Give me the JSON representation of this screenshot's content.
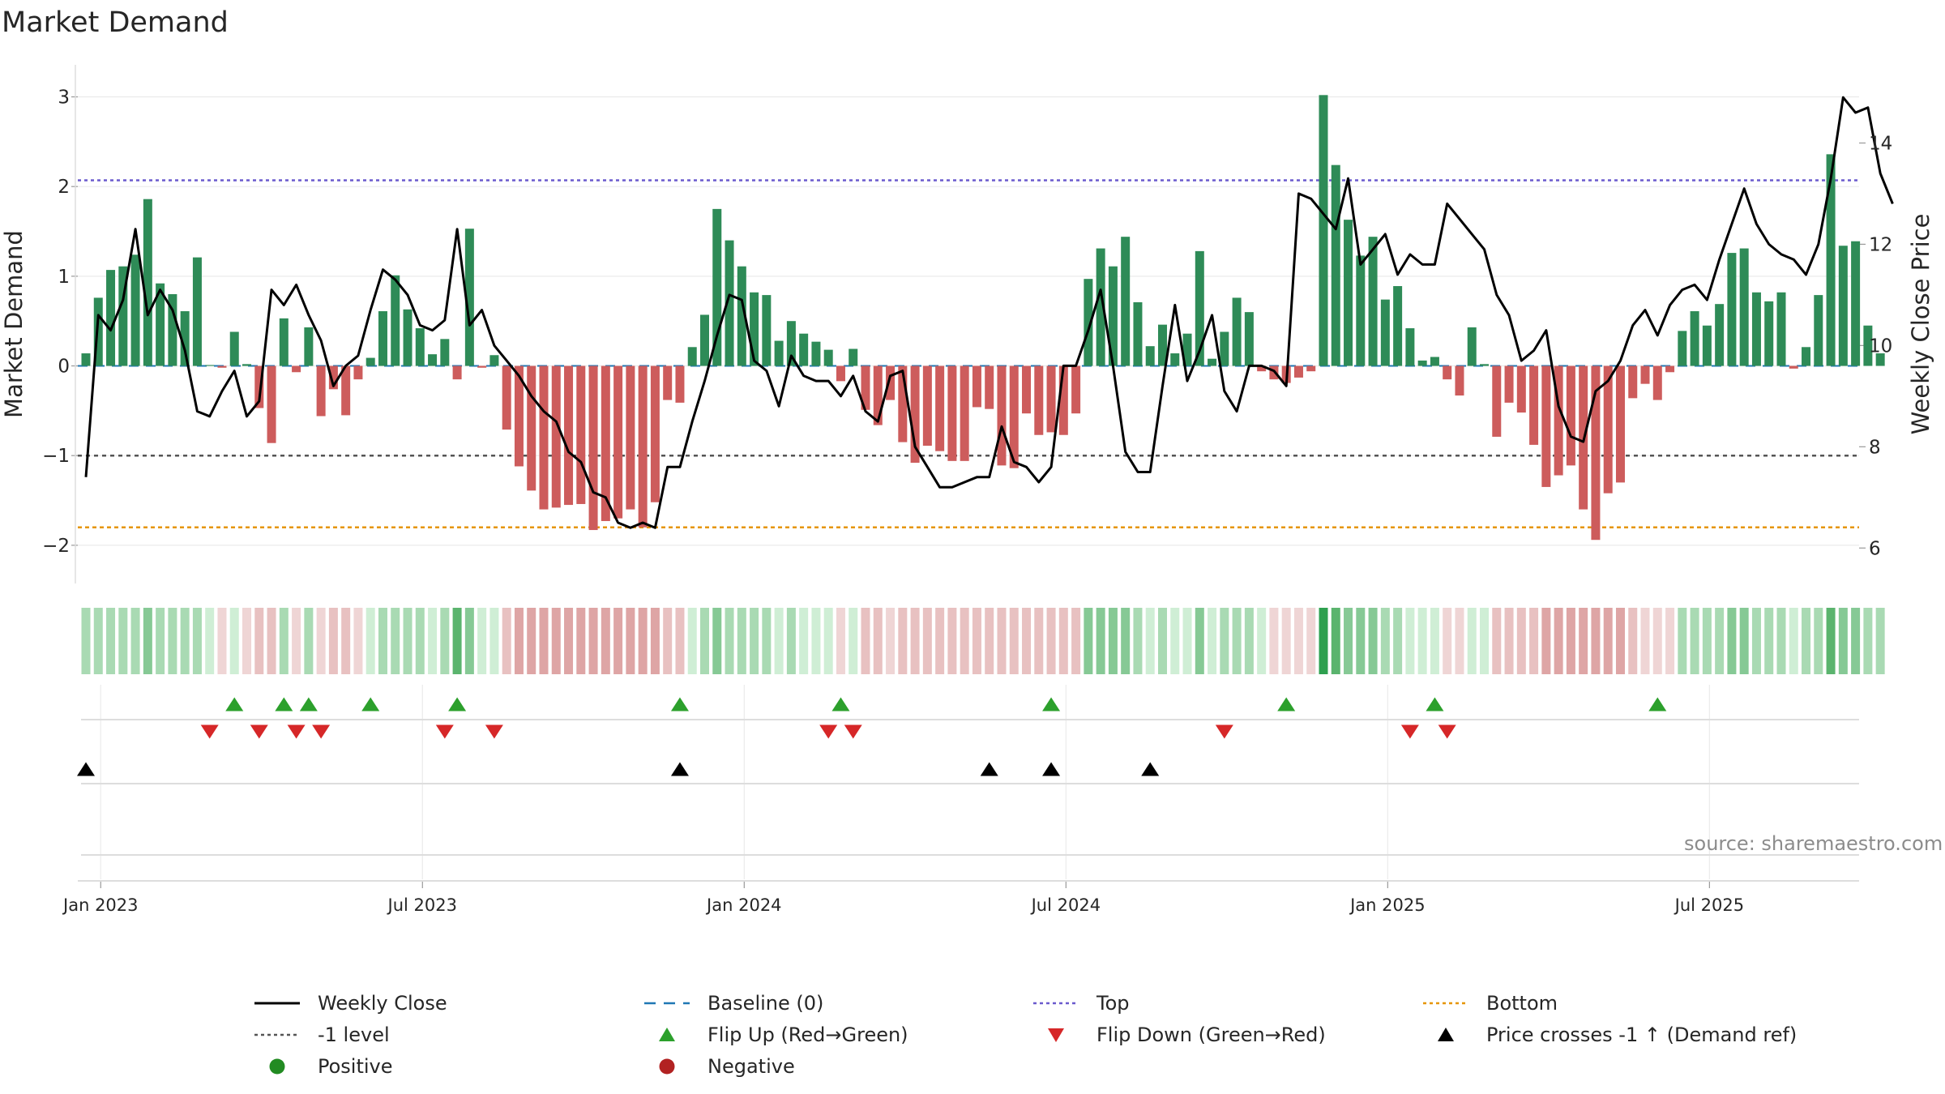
{
  "title": "Market Demand",
  "source_note": "source: sharemaestro.com",
  "colors": {
    "positive": "#2e8b57",
    "negative": "#cd5c5c",
    "close": "#000000",
    "baseline": "#1f77b4",
    "top": "#6a5acd",
    "bottom": "#e69500",
    "minus1": "#555555",
    "flip_up": "#2ca02c",
    "flip_down": "#d62728",
    "price_cross": "#000000",
    "legend_positive": "#228b22",
    "legend_negative": "#b22222"
  },
  "legend": [
    {
      "key": "close",
      "label": "Weekly Close",
      "icon": "solid-line"
    },
    {
      "key": "baseline",
      "label": "Baseline (0)",
      "icon": "dashed-line"
    },
    {
      "key": "top",
      "label": "Top",
      "icon": "dotted-line"
    },
    {
      "key": "bottom",
      "label": "Bottom",
      "icon": "dotted-line"
    },
    {
      "key": "minus1",
      "label": "-1 level",
      "icon": "dotted-line"
    },
    {
      "key": "flip_up",
      "label": "Flip Up (Red→Green)",
      "icon": "triangle-up"
    },
    {
      "key": "flip_down",
      "label": "Flip Down (Green→Red)",
      "icon": "triangle-down"
    },
    {
      "key": "price_cross",
      "label": "Price crosses -1 ↑ (Demand ref)",
      "icon": "triangle-up"
    },
    {
      "key": "positive",
      "label": "Positive",
      "icon": "circle"
    },
    {
      "key": "negative",
      "label": "Negative",
      "icon": "circle"
    }
  ],
  "chart_data": {
    "type": "bar",
    "title": "Market Demand",
    "ylabel": "Market Demand",
    "y2label": "Weekly Close Price",
    "ylim": [
      -2.2,
      3.05
    ],
    "y2lim": [
      5.7,
      15.0
    ],
    "yticks": [
      -2,
      -1,
      0,
      1,
      2,
      3
    ],
    "ytick_labels": [
      "−2",
      "−1",
      "0",
      "1",
      "2",
      "3"
    ],
    "y2ticks": [
      6,
      8,
      10,
      12,
      14
    ],
    "xtick_labels": [
      "Jan 2023",
      "Jul 2023",
      "Jan 2024",
      "Jul 2024",
      "Jan 2025",
      "Jul 2025"
    ],
    "xtick_weeks": [
      1,
      27,
      53,
      79,
      105,
      131
    ],
    "reference_lines": {
      "baseline": 0,
      "top": 2.07,
      "bottom": -1.8,
      "minus1": -1
    },
    "grid": true,
    "legend_position": "bottom",
    "series": [
      {
        "name": "Market Demand",
        "type": "bar",
        "values": [
          0.14,
          0.76,
          1.07,
          1.11,
          1.24,
          1.86,
          0.92,
          0.8,
          0.61,
          1.21,
          0.01,
          -0.02,
          0.38,
          0.02,
          -0.47,
          -0.86,
          0.53,
          -0.07,
          0.43,
          -0.56,
          -0.26,
          -0.55,
          -0.15,
          0.09,
          0.61,
          1.01,
          0.63,
          0.42,
          0.13,
          0.3,
          -0.15,
          1.53,
          -0.02,
          0.12,
          -0.71,
          -1.12,
          -1.39,
          -1.6,
          -1.58,
          -1.55,
          -1.54,
          -1.83,
          -1.73,
          -1.7,
          -1.6,
          -1.8,
          -1.52,
          -0.38,
          -0.41,
          0.21,
          0.57,
          1.75,
          1.4,
          1.11,
          0.82,
          0.79,
          0.28,
          0.5,
          0.36,
          0.27,
          0.18,
          -0.17,
          0.19,
          -0.49,
          -0.66,
          -0.38,
          -0.85,
          -1.08,
          -0.89,
          -0.95,
          -1.06,
          -1.06,
          -0.46,
          -0.48,
          -1.11,
          -1.14,
          -0.53,
          -0.77,
          -0.74,
          -0.77,
          -0.53,
          0.97,
          1.31,
          1.11,
          1.44,
          0.71,
          0.22,
          0.46,
          0.14,
          0.36,
          1.28,
          0.08,
          0.38,
          0.76,
          0.6,
          -0.06,
          -0.15,
          -0.19,
          -0.13,
          -0.06,
          3.02,
          2.24,
          1.63,
          1.23,
          1.44,
          0.74,
          0.89,
          0.42,
          0.06,
          0.1,
          -0.15,
          -0.33,
          0.43,
          0.02,
          -0.79,
          -0.41,
          -0.52,
          -0.88,
          -1.35,
          -1.22,
          -1.11,
          -1.6,
          -1.94,
          -1.42,
          -1.3,
          -0.36,
          -0.2,
          -0.38,
          -0.07,
          0.39,
          0.61,
          0.45,
          0.69,
          1.26,
          1.31,
          0.82,
          0.72,
          0.82,
          -0.03,
          0.21,
          0.79,
          2.36,
          1.34,
          1.39,
          0.45,
          0.14
        ]
      },
      {
        "name": "Weekly Close",
        "type": "line",
        "axis": "right",
        "values": [
          7.4,
          10.6,
          10.3,
          10.9,
          12.3,
          10.6,
          11.1,
          10.7,
          9.9,
          8.7,
          8.6,
          9.1,
          9.5,
          8.6,
          8.9,
          11.1,
          10.8,
          11.2,
          10.6,
          10.1,
          9.2,
          9.6,
          9.8,
          10.7,
          11.5,
          11.3,
          11.0,
          10.4,
          10.3,
          10.5,
          12.3,
          10.4,
          10.7,
          10.0,
          9.7,
          9.4,
          9.0,
          8.7,
          8.5,
          7.9,
          7.7,
          7.1,
          7.0,
          6.5,
          6.4,
          6.5,
          6.4,
          7.6,
          7.6,
          8.5,
          9.3,
          10.2,
          11.0,
          10.9,
          9.7,
          9.5,
          8.8,
          9.8,
          9.4,
          9.3,
          9.3,
          9.0,
          9.4,
          8.7,
          8.5,
          9.4,
          9.5,
          8.0,
          7.6,
          7.2,
          7.2,
          7.3,
          7.4,
          7.4,
          8.4,
          7.7,
          7.6,
          7.3,
          7.6,
          9.6,
          9.6,
          10.3,
          11.1,
          9.6,
          7.9,
          7.5,
          7.5,
          9.2,
          10.8,
          9.3,
          9.9,
          10.6,
          9.1,
          8.7,
          9.6,
          9.6,
          9.5,
          9.2,
          13.0,
          12.9,
          12.6,
          12.3,
          13.3,
          11.6,
          11.9,
          12.2,
          11.4,
          11.8,
          11.6,
          11.6,
          12.8,
          12.5,
          12.2,
          11.9,
          11.0,
          10.6,
          9.7,
          9.9,
          10.3,
          8.8,
          8.2,
          8.1,
          9.1,
          9.3,
          9.7,
          10.4,
          10.7,
          10.2,
          10.8,
          11.1,
          11.2,
          10.9,
          11.7,
          12.4,
          13.1,
          12.4,
          12.0,
          11.8,
          11.7,
          11.4,
          12.0,
          13.3,
          14.9,
          14.6,
          14.7,
          13.4,
          12.8
        ]
      }
    ],
    "regime_strip": {
      "levels": [
        1,
        1,
        1,
        1,
        1,
        2,
        1,
        1,
        1,
        1,
        0,
        -1,
        0,
        -1,
        -2,
        -2,
        1,
        -1,
        1,
        -1,
        -2,
        -2,
        -1,
        0,
        1,
        1,
        1,
        1,
        0,
        1,
        3,
        2,
        0,
        0,
        -2,
        -3,
        -3,
        -3,
        -3,
        -3,
        -3,
        -3,
        -3,
        -3,
        -3,
        -3,
        -3,
        -2,
        -2,
        0,
        1,
        2,
        1,
        1,
        1,
        1,
        0,
        1,
        0,
        0,
        0,
        -1,
        0,
        -2,
        -2,
        -1,
        -2,
        -2,
        -2,
        -2,
        -2,
        -2,
        -2,
        -2,
        -2,
        -2,
        -2,
        -2,
        -2,
        -2,
        -2,
        2,
        2,
        2,
        2,
        1,
        0,
        1,
        0,
        0,
        2,
        0,
        1,
        1,
        1,
        0,
        -1,
        -1,
        -1,
        -1,
        4,
        3,
        2,
        2,
        2,
        1,
        1,
        0,
        0,
        0,
        -1,
        -1,
        0,
        0,
        -2,
        -2,
        -2,
        -2,
        -3,
        -3,
        -3,
        -3,
        -3,
        -3,
        -3,
        -2,
        -1,
        -1,
        -1,
        1,
        1,
        1,
        1,
        2,
        2,
        1,
        1,
        1,
        0,
        1,
        1,
        3,
        2,
        2,
        1,
        1
      ]
    },
    "flip_up_weeks": [
      12,
      16,
      18,
      23,
      30,
      48,
      61,
      78,
      97,
      109,
      127
    ],
    "flip_down_weeks": [
      10,
      14,
      17,
      19,
      29,
      33,
      60,
      62,
      92,
      107,
      110
    ],
    "price_cross_weeks": [
      0,
      48,
      73,
      78,
      86
    ]
  }
}
